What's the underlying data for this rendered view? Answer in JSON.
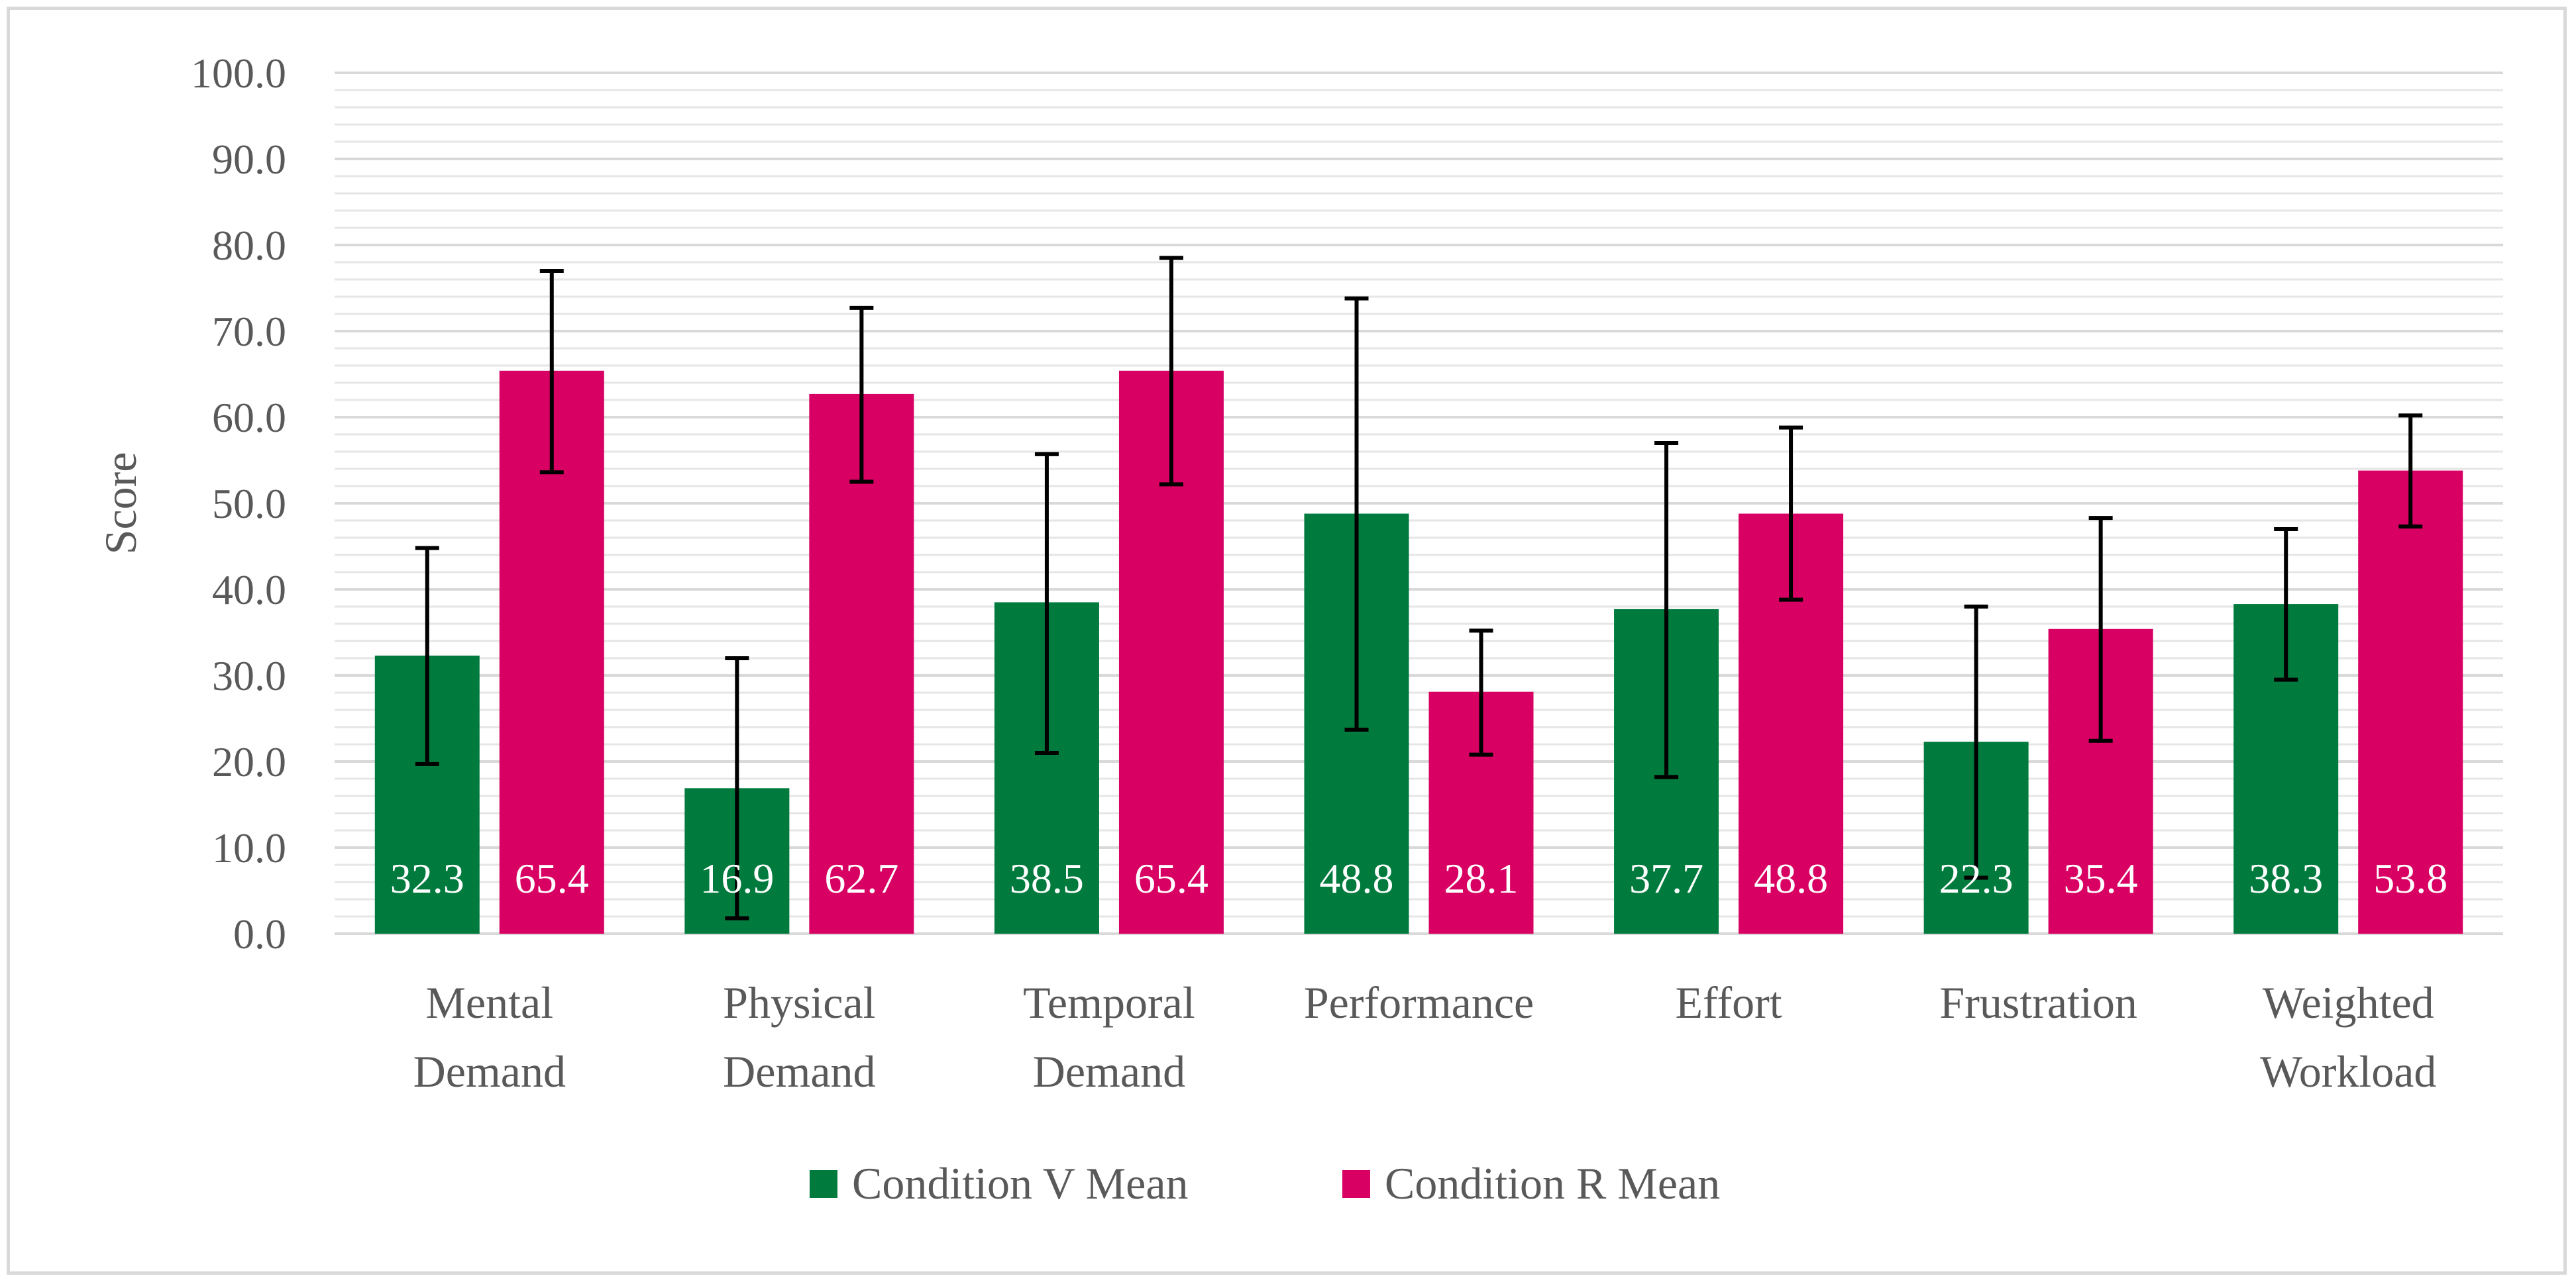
{
  "chart_data": {
    "type": "bar",
    "title": "",
    "xlabel": "",
    "ylabel": "Score",
    "ylim": [
      0,
      100
    ],
    "ytick_step": 10,
    "ytick_labels": [
      "0.0",
      "10.0",
      "20.0",
      "30.0",
      "40.0",
      "50.0",
      "60.0",
      "70.0",
      "80.0",
      "90.0",
      "100.0"
    ],
    "minor_grid_step": 2,
    "grid": true,
    "legend_position": "bottom",
    "categories": [
      [
        "Mental",
        "Demand"
      ],
      [
        "Physical",
        "Demand"
      ],
      [
        "Temporal",
        "Demand"
      ],
      [
        "Performance"
      ],
      [
        "Effort"
      ],
      [
        "Frustration"
      ],
      [
        "Weighted",
        "Workload"
      ]
    ],
    "series": [
      {
        "name": "Condition V Mean",
        "color": "#007a3d",
        "values": [
          32.3,
          16.9,
          38.5,
          48.8,
          37.7,
          22.3,
          38.3
        ],
        "labels": [
          "32.3",
          "16.9",
          "38.5",
          "48.8",
          "37.7",
          "22.3",
          "38.3"
        ],
        "error_low": [
          19.7,
          1.8,
          21.0,
          23.7,
          18.2,
          6.5,
          29.5
        ],
        "error_high": [
          44.8,
          32.0,
          55.7,
          73.8,
          57.0,
          38.0,
          47.0
        ]
      },
      {
        "name": "Condition R Mean",
        "color": "#d80063",
        "values": [
          65.4,
          62.7,
          65.4,
          28.1,
          48.8,
          35.4,
          53.8
        ],
        "labels": [
          "65.4",
          "62.7",
          "65.4",
          "28.1",
          "48.8",
          "35.4",
          "53.8"
        ],
        "error_low": [
          53.6,
          52.5,
          52.2,
          20.8,
          38.8,
          22.4,
          47.3
        ],
        "error_high": [
          77.0,
          72.7,
          78.5,
          35.2,
          58.8,
          48.3,
          60.2
        ]
      }
    ]
  }
}
